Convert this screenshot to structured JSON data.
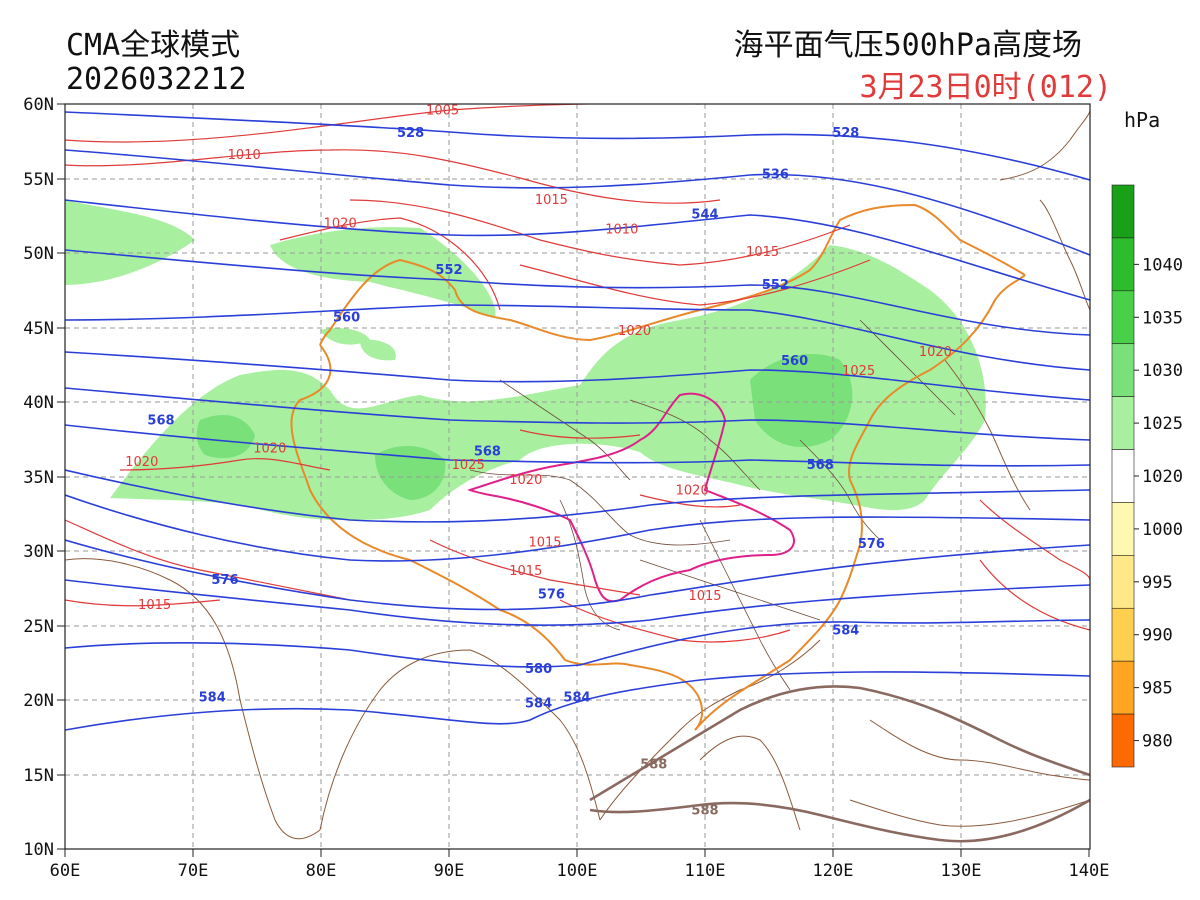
{
  "header": {
    "model": "CMA全球模式",
    "init_time": "2026032212",
    "product": "海平面气压500hPa高度场",
    "valid": "3月23日0时(012)"
  },
  "map": {
    "lon_range": [
      60,
      140
    ],
    "lat_range": [
      10,
      60
    ],
    "x_ticks": [
      "60E",
      "70E",
      "80E",
      "90E",
      "100E",
      "110E",
      "120E",
      "130E",
      "140E"
    ],
    "y_ticks": [
      "60N",
      "55N",
      "50N",
      "45N",
      "40N",
      "35N",
      "30N",
      "25N",
      "20N",
      "15N",
      "10N"
    ],
    "grid": true
  },
  "height_contours": {
    "unit": "dagpm",
    "color": "#2a3fd8",
    "levels": [
      "528",
      "536",
      "544",
      "552",
      "560",
      "568",
      "576",
      "580",
      "584",
      "588"
    ],
    "labels": [
      {
        "text": "528",
        "lon": 87,
        "lat": 57.8
      },
      {
        "text": "528",
        "lon": 121,
        "lat": 57.8
      },
      {
        "text": "536",
        "lon": 115.5,
        "lat": 55
      },
      {
        "text": "544",
        "lon": 110,
        "lat": 52.3
      },
      {
        "text": "552",
        "lon": 90,
        "lat": 48.6
      },
      {
        "text": "552",
        "lon": 115.5,
        "lat": 47.6
      },
      {
        "text": "560",
        "lon": 82,
        "lat": 45.4
      },
      {
        "text": "560",
        "lon": 117,
        "lat": 42.5
      },
      {
        "text": "568",
        "lon": 67.5,
        "lat": 38.5
      },
      {
        "text": "568",
        "lon": 93,
        "lat": 36.4
      },
      {
        "text": "568",
        "lon": 119,
        "lat": 35.5
      },
      {
        "text": "576",
        "lon": 72.5,
        "lat": 27.8
      },
      {
        "text": "576",
        "lon": 98,
        "lat": 26.8
      },
      {
        "text": "576",
        "lon": 123,
        "lat": 30.2
      },
      {
        "text": "580",
        "lon": 97,
        "lat": 21.8
      },
      {
        "text": "584",
        "lon": 71.5,
        "lat": 19.9
      },
      {
        "text": "584",
        "lon": 97,
        "lat": 19.5
      },
      {
        "text": "584",
        "lon": 100,
        "lat": 19.9
      },
      {
        "text": "584",
        "lon": 121,
        "lat": 24.4
      }
    ]
  },
  "h588": {
    "color": "#8a6a60",
    "labels": [
      {
        "text": "588",
        "lon": 106,
        "lat": 15.4
      },
      {
        "text": "588",
        "lon": 110,
        "lat": 12.3
      }
    ]
  },
  "isobars": {
    "unit": "hPa",
    "color": "#e03a3a",
    "labels": [
      {
        "text": "1005",
        "lon": 89.5,
        "lat": 59.3
      },
      {
        "text": "1010",
        "lon": 74,
        "lat": 56.3
      },
      {
        "text": "1015",
        "lon": 98,
        "lat": 53.3
      },
      {
        "text": "1010",
        "lon": 103.5,
        "lat": 51.3
      },
      {
        "text": "1015",
        "lon": 114.5,
        "lat": 49.8
      },
      {
        "text": "1020",
        "lon": 81.5,
        "lat": 51.7
      },
      {
        "text": "1020",
        "lon": 104.5,
        "lat": 44.5
      },
      {
        "text": "1020",
        "lon": 128,
        "lat": 43.1
      },
      {
        "text": "1025",
        "lon": 122,
        "lat": 41.8
      },
      {
        "text": "1020",
        "lon": 76,
        "lat": 36.6
      },
      {
        "text": "1020",
        "lon": 66,
        "lat": 35.7
      },
      {
        "text": "1025",
        "lon": 91.5,
        "lat": 35.5
      },
      {
        "text": "1020",
        "lon": 96,
        "lat": 34.5
      },
      {
        "text": "1020",
        "lon": 109,
        "lat": 33.8
      },
      {
        "text": "1015",
        "lon": 97.5,
        "lat": 30.3
      },
      {
        "text": "1015",
        "lon": 96,
        "lat": 28.4
      },
      {
        "text": "1015",
        "lon": 67,
        "lat": 26.1
      },
      {
        "text": "1015",
        "lon": 110,
        "lat": 26.7
      }
    ]
  },
  "legend": {
    "unit": "hPa",
    "items": [
      {
        "label": "",
        "color": "#18a018"
      },
      {
        "label": "1040",
        "color": "#2cbc2c"
      },
      {
        "label": "1035",
        "color": "#48d048"
      },
      {
        "label": "1030",
        "color": "#7ae07a"
      },
      {
        "label": "1025",
        "color": "#a8f0a0"
      },
      {
        "label": "1020",
        "color": "#ffffff"
      },
      {
        "label": "1000",
        "color": "#fff8b0"
      },
      {
        "label": "995",
        "color": "#ffe888"
      },
      {
        "label": "990",
        "color": "#ffcf50"
      },
      {
        "label": "985",
        "color": "#ffa520"
      },
      {
        "label": "980",
        "color": "#ff6a00"
      }
    ]
  }
}
